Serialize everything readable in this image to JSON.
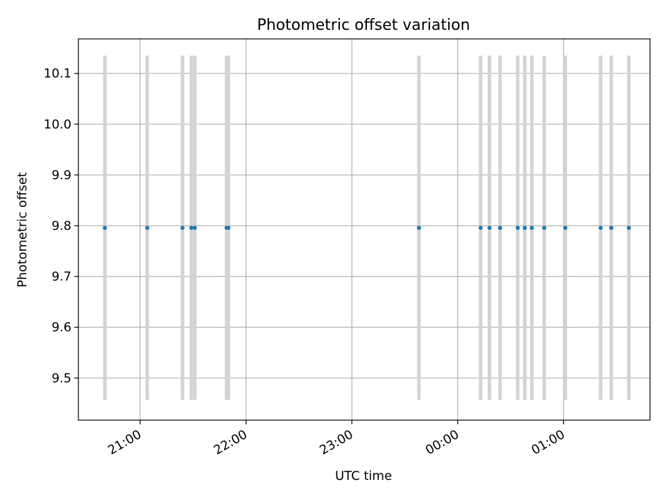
{
  "chart_data": {
    "type": "scatter",
    "title": "Photometric offset variation",
    "xlabel": "UTC time",
    "ylabel": "Photometric offset",
    "xlim": [
      "20:25",
      "01:49"
    ],
    "ylim": [
      9.417,
      10.168
    ],
    "grid": true,
    "x_ticks": [
      "21:00",
      "22:00",
      "23:00",
      "00:00",
      "01:00"
    ],
    "y_ticks": [
      9.5,
      9.6,
      9.7,
      9.8,
      9.9,
      10.0,
      10.1
    ],
    "colors": {
      "points": "#1f77b4",
      "errorbars": "#d3d3d3",
      "grid": "#b0b0b0"
    },
    "errorbar_range": [
      9.457,
      10.135
    ],
    "series": [
      {
        "x": [
          "20:40",
          "21:04",
          "21:24",
          "21:29",
          "21:31",
          "21:49",
          "21:50",
          "23:38",
          "00:13",
          "00:18",
          "00:24",
          "00:34",
          "00:38",
          "00:42",
          "00:49",
          "01:01",
          "01:21",
          "01:27",
          "01:37"
        ],
        "y": [
          9.796,
          9.796,
          9.796,
          9.796,
          9.796,
          9.796,
          9.796,
          9.796,
          9.796,
          9.796,
          9.796,
          9.796,
          9.796,
          9.796,
          9.796,
          9.796,
          9.796,
          9.796,
          9.796
        ]
      }
    ]
  }
}
